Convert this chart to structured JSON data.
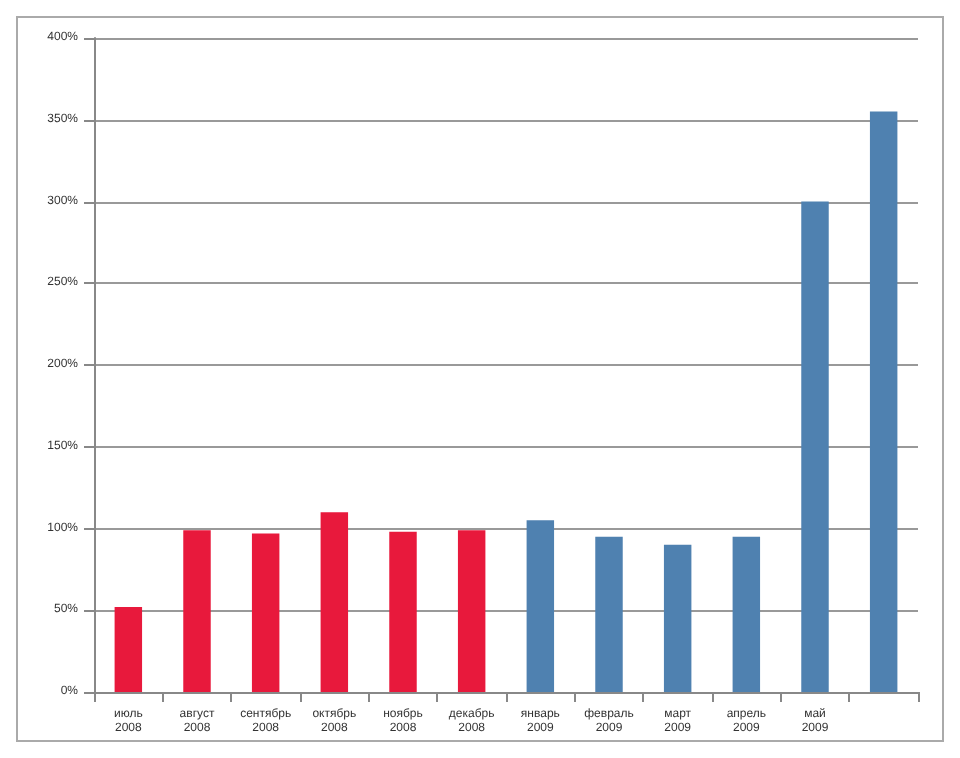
{
  "chart_data": {
    "type": "bar",
    "categories": [
      "июль 2008",
      "август 2008",
      "сентябрь 2008",
      "октябрь 2008",
      "ноябрь 2008",
      "декабрь 2008",
      "январь 2009",
      "февраль 2009",
      "март 2009",
      "апрель 2009",
      "май 2009",
      null
    ],
    "values": [
      52,
      99,
      97,
      110,
      98,
      99,
      105,
      95,
      90,
      95,
      300,
      355
    ],
    "colors": [
      "#e8193c",
      "#e8193c",
      "#e8193c",
      "#e8193c",
      "#e8193c",
      "#e8193c",
      "#4f81b0",
      "#4f81b0",
      "#4f81b0",
      "#4f81b0",
      "#4f81b0",
      "#4f81b0"
    ],
    "ylim": [
      0,
      400
    ],
    "yticks": [
      {
        "value": 0,
        "label": "0%"
      },
      {
        "value": 50,
        "label": "50%"
      },
      {
        "value": 100,
        "label": "100%"
      },
      {
        "value": 150,
        "label": "150%"
      },
      {
        "value": 200,
        "label": "200%"
      },
      {
        "value": 250,
        "label": "250%"
      },
      {
        "value": 300,
        "label": "300%"
      },
      {
        "value": 350,
        "label": "350%"
      },
      {
        "value": 400,
        "label": "400%"
      }
    ],
    "grid": "y"
  }
}
